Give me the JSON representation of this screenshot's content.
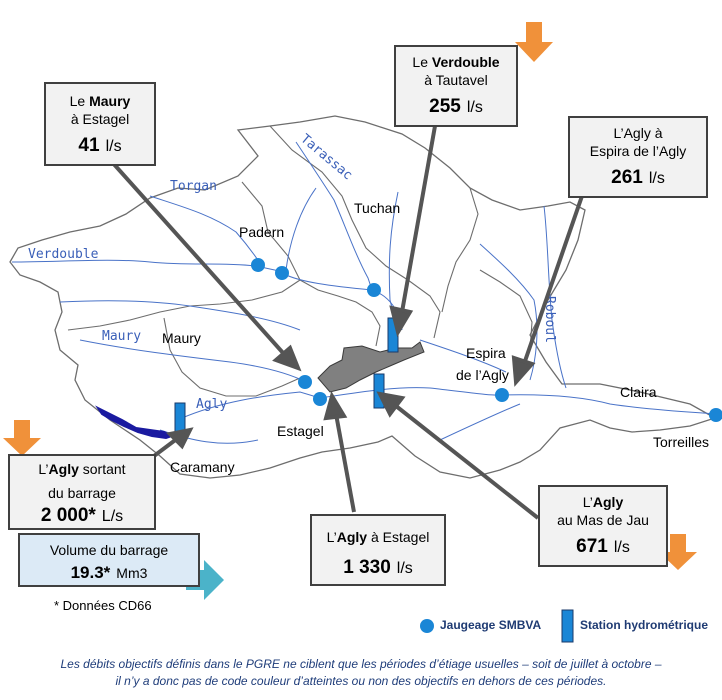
{
  "places": {
    "padern": "Padern",
    "tuchan": "Tuchan",
    "maury": "Maury",
    "espira": "Espira",
    "de_lagly": "de l’Agly",
    "claira": "Claira",
    "estagel": "Estagel",
    "caramany": "Caramany",
    "torreilles": "Torreilles"
  },
  "rivers": {
    "torgan": "Torgan",
    "verdouble": "Verdouble",
    "maury": "Maury",
    "agly": "Agly",
    "tarassac": "Tarassac",
    "roboul": "Roboul"
  },
  "boxes": {
    "maury": {
      "line1_a": "Le ",
      "line1_b": "Maury",
      "line2": "à Estagel",
      "value": "41",
      "unit": "l/s"
    },
    "verdouble": {
      "line1_a": "Le ",
      "line1_b": "Verdouble",
      "line2": "à Tautavel",
      "value": "255",
      "unit": "l/s"
    },
    "espira": {
      "line1": "L’Agly à",
      "line2": "Espira de l’Agly",
      "value": "261",
      "unit": "l/s"
    },
    "barrage": {
      "line1_a": "L’",
      "line1_b": "Agly",
      "line1_c": " sortant",
      "line2": "du barrage",
      "value": "2 000*",
      "unit": "L/s"
    },
    "estagel": {
      "line1_a": "L’",
      "line1_b": "Agly",
      "line1_c": " à Estagel",
      "value": "1 330",
      "unit": "l/s"
    },
    "masdejau": {
      "line1_a": "L’",
      "line1_b": "Agly",
      "line2": "au Mas de Jau",
      "value": "671",
      "unit": "l/s"
    }
  },
  "volume": {
    "label": "Volume  du barrage",
    "value": "19.3*",
    "unit": "Mm3"
  },
  "footnote": "*  Données CD66",
  "legend": {
    "jaugeage": "Jaugeage SMBVA",
    "station": "Station hydrométrique"
  },
  "caption": {
    "line1": "Les débits objectifs définis dans le PGRE ne ciblent que les périodes d’étiage usuelles – soit de juillet à octobre –",
    "line2": "il n’y a donc pas de code couleur d’atteintes ou non des objectifs en dehors de ces périodes."
  },
  "colors": {
    "station": "#1a86d6",
    "arrow_orange": "#f0913a",
    "arrow_teal": "#4bb3c9",
    "urban": "#808080",
    "lake": "#1a1aa0"
  }
}
